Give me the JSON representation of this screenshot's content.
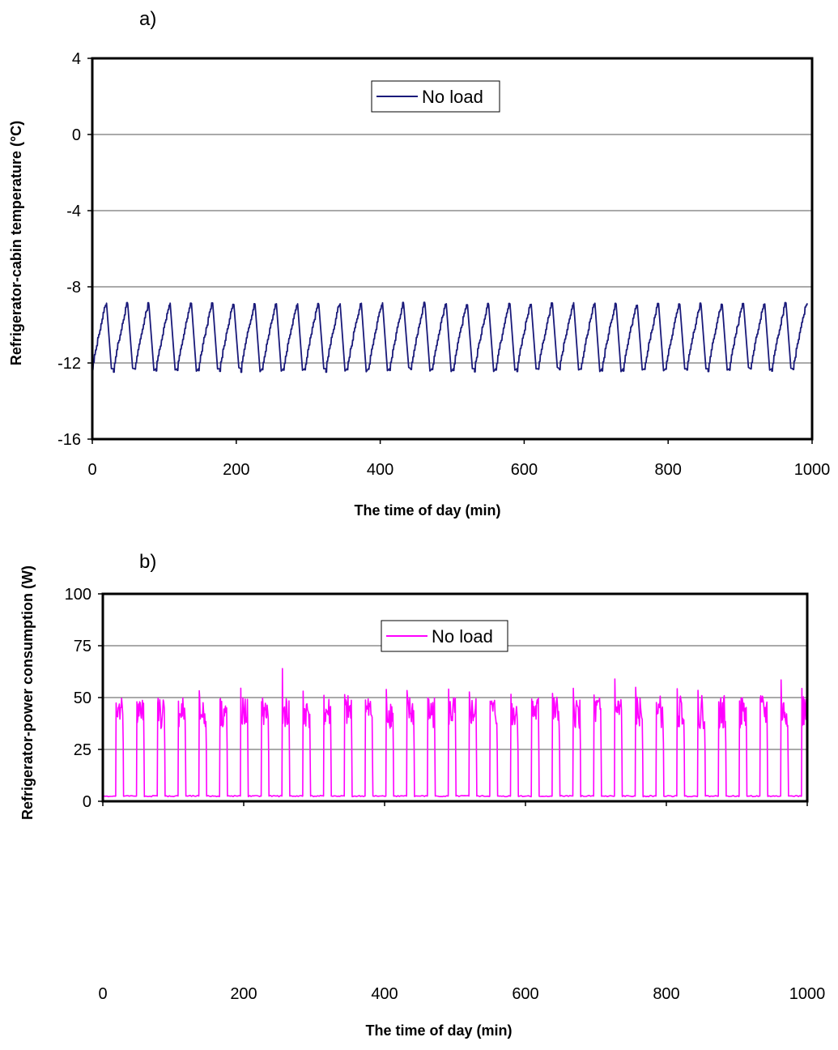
{
  "chart_data": [
    {
      "type": "line",
      "panel_label": "a)",
      "xlabel": "The time of day (min)",
      "ylabel": "Refrigerator-cabin temperature (°C)",
      "xlim": [
        0,
        1000
      ],
      "ylim": [
        -16,
        4
      ],
      "xticks": [
        0,
        200,
        400,
        600,
        800,
        1000
      ],
      "yticks": [
        -16,
        -12,
        -8,
        -4,
        0,
        4
      ],
      "grid": "horizontal",
      "legend_position": "top-center",
      "series": [
        {
          "name": "No load",
          "color": "#1a1a7a",
          "pattern": "sawtooth",
          "cycle_period_min": 29.5,
          "cycle_count": 34,
          "min_value": -12.4,
          "max_value": -8.9,
          "x": [
            0,
            5,
            10,
            15,
            20,
            25,
            30,
            35,
            40,
            45,
            50,
            55
          ],
          "y": [
            -12.2,
            -11.5,
            -10.2,
            -9.4,
            -8.9,
            -9.6,
            -11.8,
            -12.4,
            -11.6,
            -10.4,
            -9.2,
            -8.9
          ]
        }
      ]
    },
    {
      "type": "line",
      "panel_label": "b)",
      "xlabel": "The time of day (min)",
      "ylabel": "Refrigerator-power consumption (W)",
      "xlim": [
        0,
        1000
      ],
      "ylim": [
        0,
        100
      ],
      "xticks": [
        0,
        200,
        400,
        600,
        800,
        1000
      ],
      "yticks": [
        0,
        25,
        50,
        75,
        100
      ],
      "grid": "horizontal",
      "legend_position": "top-center",
      "series": [
        {
          "name": "No load",
          "color": "#ff00ff",
          "pattern": "on-off cycles",
          "cycle_period_min": 29.5,
          "cycle_count": 34,
          "off_value": 2.5,
          "on_value_range": [
            35,
            55
          ],
          "peak_values": [
            {
              "x": 250,
              "y": 64
            },
            {
              "x": 695,
              "y": 59
            },
            {
              "x": 935,
              "y": 58.5
            }
          ]
        }
      ]
    }
  ]
}
